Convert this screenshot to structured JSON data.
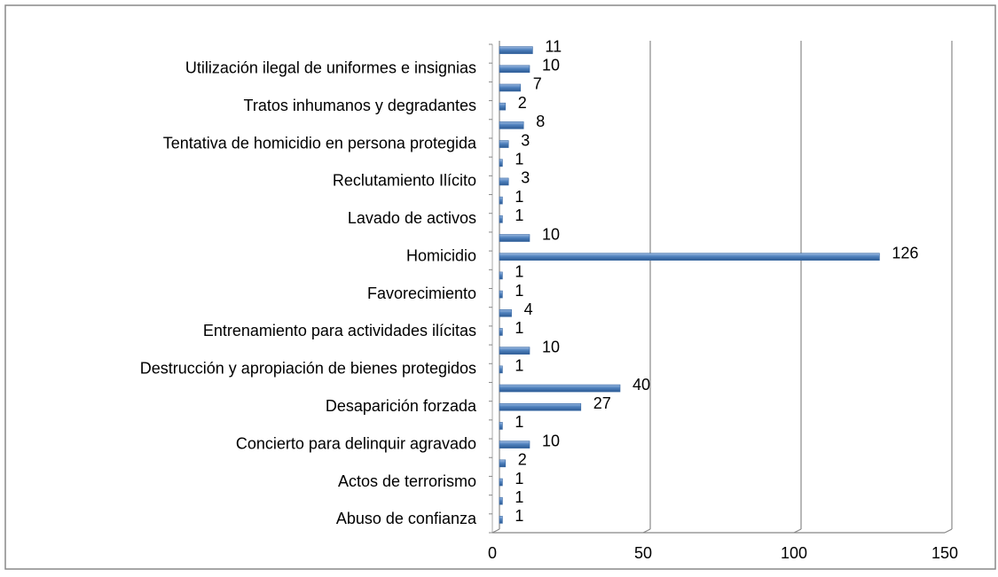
{
  "chart_data": {
    "type": "bar",
    "orientation": "horizontal",
    "categories": [
      null,
      "Utilización ilegal de uniformes e insignias",
      null,
      "Tratos inhumanos y degradantes",
      null,
      "Tentativa de homicidio en persona protegida",
      null,
      "Reclutamiento Ilícito",
      null,
      "Lavado de activos",
      null,
      "Homicidio",
      null,
      "Favorecimiento",
      null,
      "Entrenamiento para actividades ilícitas",
      null,
      "Destrucción y apropiación de bienes protegidos",
      null,
      "Desaparición forzada",
      null,
      "Concierto para delinquir agravado",
      null,
      "Actos de terrorismo",
      null,
      "Abuso de confianza"
    ],
    "values": [
      11,
      10,
      7,
      2,
      8,
      3,
      1,
      3,
      1,
      1,
      10,
      126,
      1,
      1,
      4,
      1,
      10,
      1,
      40,
      27,
      1,
      10,
      2,
      1,
      1,
      1
    ],
    "color": "#4f81bd",
    "xlim": [
      0,
      150
    ],
    "xticks": [
      0,
      50,
      100,
      150
    ],
    "grid": true
  }
}
